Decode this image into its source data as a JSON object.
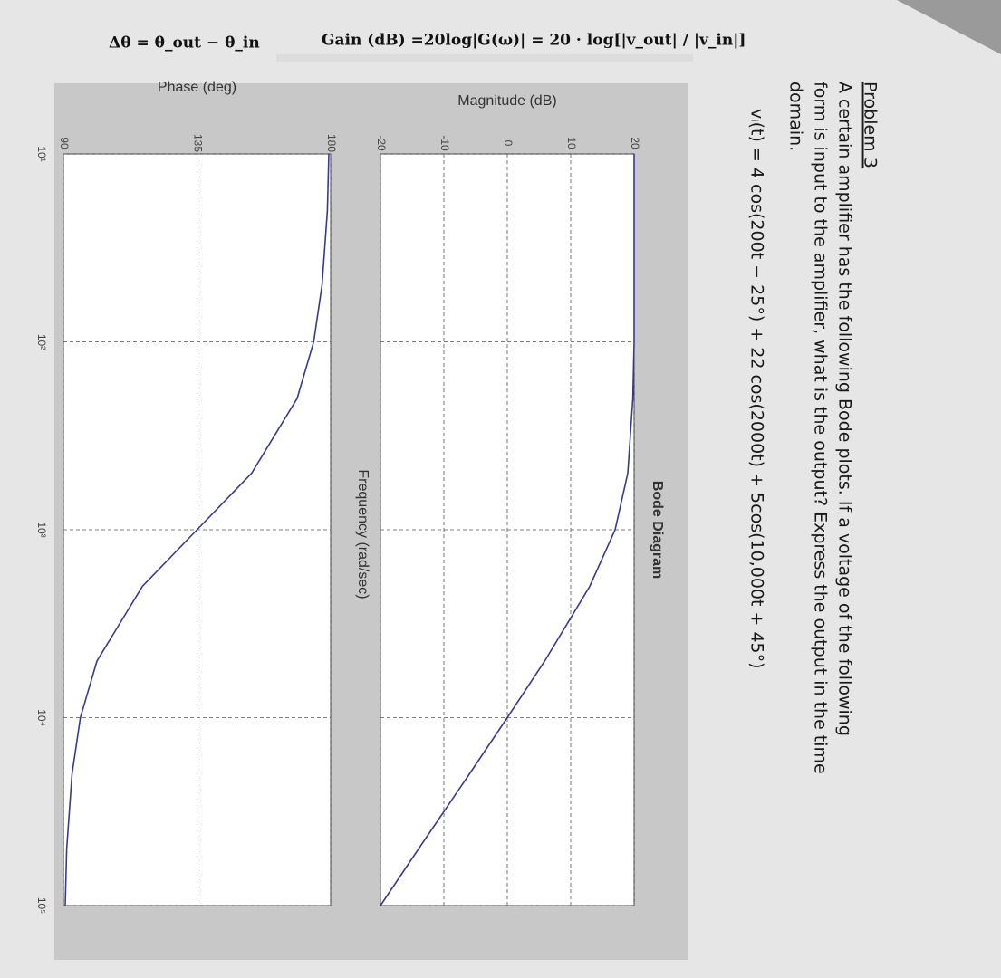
{
  "problem": {
    "heading": "Problem 3",
    "lines": [
      "A certain amplifier has the following Bode plots.   If a voltage of the following",
      "form is input to the amplifier, what is the output?  Express the output in the time",
      "domain."
    ],
    "equation": "vᵢ(t) = 4 cos(200t − 25°) + 22 cos(2000t) + 5cos(10,000t + 45°)"
  },
  "annotations": {
    "gain": "Gain (dB) =20log|G(ω)| = 20 · log[|v_out| / |v_in|]",
    "phase": "Δθ = θ_out − θ_in"
  },
  "chart_data": [
    {
      "type": "line",
      "title": "Bode Diagram",
      "ylabel": "Magnitude (dB)",
      "xscale": "log",
      "x": [
        10,
        20,
        50,
        100,
        200,
        500,
        1000,
        2000,
        5000,
        10000,
        20000,
        50000,
        100000
      ],
      "values": [
        20.0,
        20.0,
        20.0,
        20.0,
        19.8,
        19.0,
        17.0,
        13.0,
        5.9,
        0.0,
        -6.0,
        -14.0,
        -20.0
      ],
      "color": "#3a3a8c",
      "xlim": [
        10,
        100000
      ],
      "xticks": [
        10,
        100,
        1000,
        10000,
        100000
      ],
      "ylim": [
        -20,
        20
      ],
      "yticks": [
        -20,
        -10,
        0,
        10,
        20
      ],
      "grid": true
    },
    {
      "type": "line",
      "ylabel": "Phase (deg)",
      "xlabel": "Frequency (rad/sec)",
      "xscale": "log",
      "x": [
        10,
        20,
        50,
        100,
        200,
        500,
        1000,
        2000,
        5000,
        10000,
        20000,
        50000,
        100000
      ],
      "values": [
        179.4,
        178.9,
        177.1,
        174.3,
        168.7,
        153.4,
        135.0,
        116.6,
        101.3,
        95.7,
        92.9,
        91.1,
        90.6
      ],
      "color": "#3a3a8c",
      "xlim": [
        10,
        100000
      ],
      "xticks": [
        {
          "value": 10,
          "label": "10¹"
        },
        {
          "value": 100,
          "label": "10²"
        },
        {
          "value": 1000,
          "label": "10³"
        },
        {
          "value": 10000,
          "label": "10⁴"
        },
        {
          "value": 100000,
          "label": "10⁵"
        }
      ],
      "ylim": [
        90,
        180
      ],
      "yticks": [
        90,
        135,
        180
      ],
      "grid": true
    }
  ]
}
